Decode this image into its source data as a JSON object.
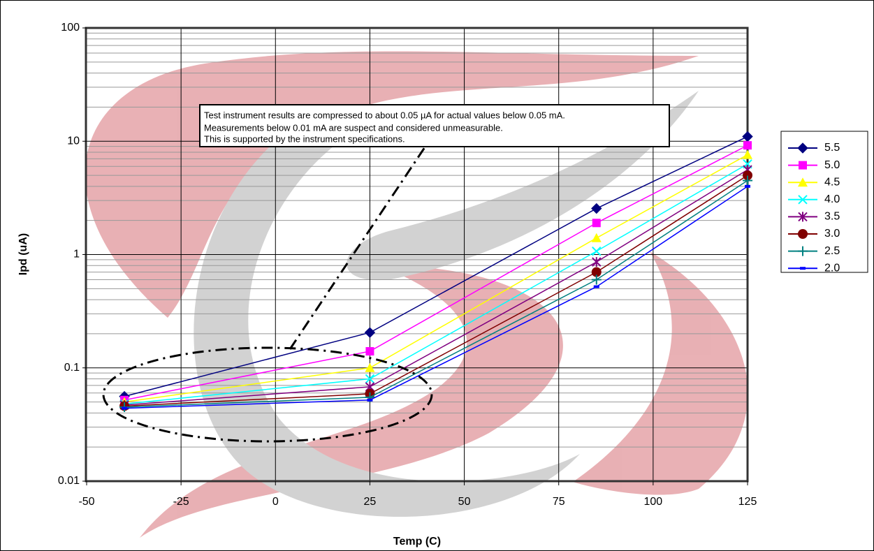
{
  "chart_data": {
    "type": "line",
    "x_label": "Temp (C)",
    "y_label": "Ipd (uA)",
    "annotation": [
      "Test instrument results are compressed to about 0.05 µA for actual values below 0.05 mA.",
      "Measurements below 0.01 mA are suspect and considered unmeasurable.",
      "This is supported by the instrument specifications."
    ],
    "x": [
      -40,
      25,
      85,
      125
    ],
    "xlim": [
      -50,
      125
    ],
    "xticks": [
      -50,
      -25,
      0,
      25,
      50,
      75,
      100,
      125
    ],
    "ylim": [
      0.01,
      100
    ],
    "yticks": [
      0.01,
      0.1,
      1,
      10,
      100
    ],
    "log_y": true,
    "grid": true,
    "minor_grid": true,
    "legend": "right",
    "series": [
      {
        "name": "5.5",
        "color": "#000080",
        "marker": "diamond",
        "values": [
          0.056,
          0.205,
          2.55,
          11
        ]
      },
      {
        "name": "5.0",
        "color": "#ff00ff",
        "marker": "square",
        "values": [
          0.052,
          0.14,
          1.9,
          9.2
        ]
      },
      {
        "name": "4.5",
        "color": "#ffff00",
        "marker": "triangle",
        "values": [
          0.05,
          0.1,
          1.4,
          7.6
        ]
      },
      {
        "name": "4.0",
        "color": "#00ffff",
        "marker": "x",
        "values": [
          0.048,
          0.08,
          1.07,
          6.3
        ]
      },
      {
        "name": "3.5",
        "color": "#800080",
        "marker": "star",
        "values": [
          0.047,
          0.068,
          0.86,
          5.6
        ]
      },
      {
        "name": "3.0",
        "color": "#800000",
        "marker": "circle",
        "values": [
          0.046,
          0.059,
          0.7,
          5.0
        ]
      },
      {
        "name": "2.5",
        "color": "#008080",
        "marker": "plus",
        "values": [
          0.045,
          0.055,
          0.6,
          4.5
        ]
      },
      {
        "name": "2.0",
        "color": "#0000ff",
        "marker": "dash",
        "values": [
          0.044,
          0.052,
          0.52,
          4.0
        ]
      }
    ]
  }
}
